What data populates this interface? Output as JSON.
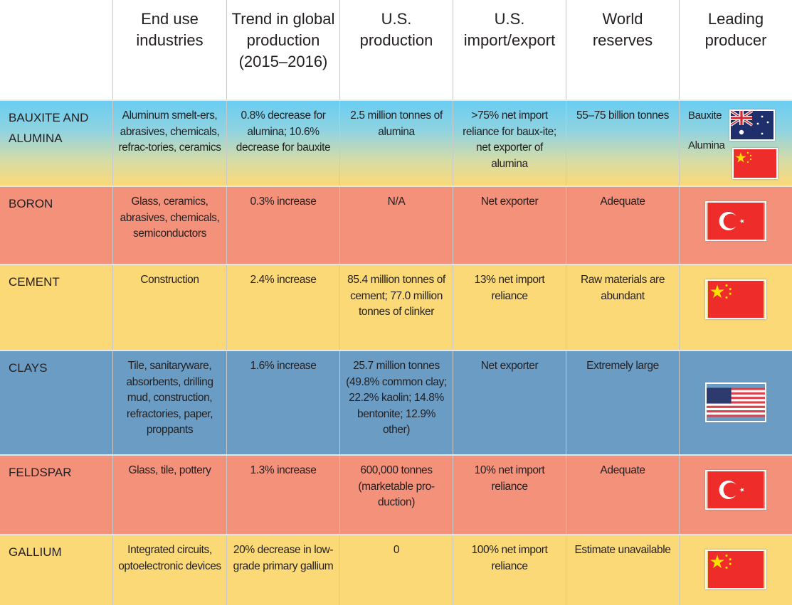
{
  "headers": [
    "",
    "End use industries",
    "Trend in global production (2015–2016)",
    "U.S. production",
    "U.S. import/export",
    "World reserves",
    "Leading producer"
  ],
  "rows": [
    {
      "mineral": "BAUXITE AND ALUMINA",
      "end_use": "Aluminum smelt-ers, abrasives, chemicals, refrac-tories, ceramics",
      "trend": "0.8% decrease for alumina; 10.6% decrease for bauxite",
      "us_production": "2.5 million tonnes of alumina",
      "import_export": ">75% net import reliance for baux-ite; net exporter of alumina",
      "reserves": "55–75 billion tonnes",
      "producer_labels": [
        "Bauxite",
        "Alumina"
      ],
      "producer_flags": [
        "australia-flag",
        "china-flag"
      ]
    },
    {
      "mineral": "BORON",
      "end_use": "Glass, ceramics, abrasives, chemicals, semiconductors",
      "trend": "0.3% increase",
      "us_production": "N/A",
      "import_export": "Net exporter",
      "reserves": "Adequate",
      "producer_flags": [
        "turkey-flag"
      ]
    },
    {
      "mineral": "CEMENT",
      "end_use": "Construction",
      "trend": "2.4% increase",
      "us_production": "85.4 million tonnes of cement; 77.0 million tonnes of clinker",
      "import_export": "13% net import reliance",
      "reserves": "Raw materials are abundant",
      "producer_flags": [
        "china-flag"
      ]
    },
    {
      "mineral": "CLAYS",
      "end_use": "Tile, sanitaryware, absorbents, drilling mud, construction, refractories, paper, proppants",
      "trend": "1.6% increase",
      "us_production": "25.7 million tonnes (49.8% common clay; 22.2% kaolin; 14.8% bentonite; 12.9% other)",
      "import_export": "Net exporter",
      "reserves": "Extremely large",
      "producer_flags": [
        "usa-flag"
      ]
    },
    {
      "mineral": "FELDSPAR",
      "end_use": "Glass, tile, pottery",
      "trend": "1.3% increase",
      "us_production": "600,000 tonnes (marketable pro-duction)",
      "import_export": "10% net import reliance",
      "reserves": "Adequate",
      "producer_flags": [
        "turkey-flag"
      ]
    },
    {
      "mineral": "GALLIUM",
      "end_use": "Integrated circuits, optoelectronic devices",
      "trend": "20% decrease in low-grade primary gallium",
      "us_production": "0",
      "import_export": "100% net import reliance",
      "reserves": "Estimate unavailable",
      "producer_flags": [
        "china-flag"
      ]
    }
  ],
  "colors": {
    "salmon": "#f4917b",
    "yellow": "#fbd977",
    "blue": "#6a9cc4",
    "cyan": "#6acdf1"
  }
}
